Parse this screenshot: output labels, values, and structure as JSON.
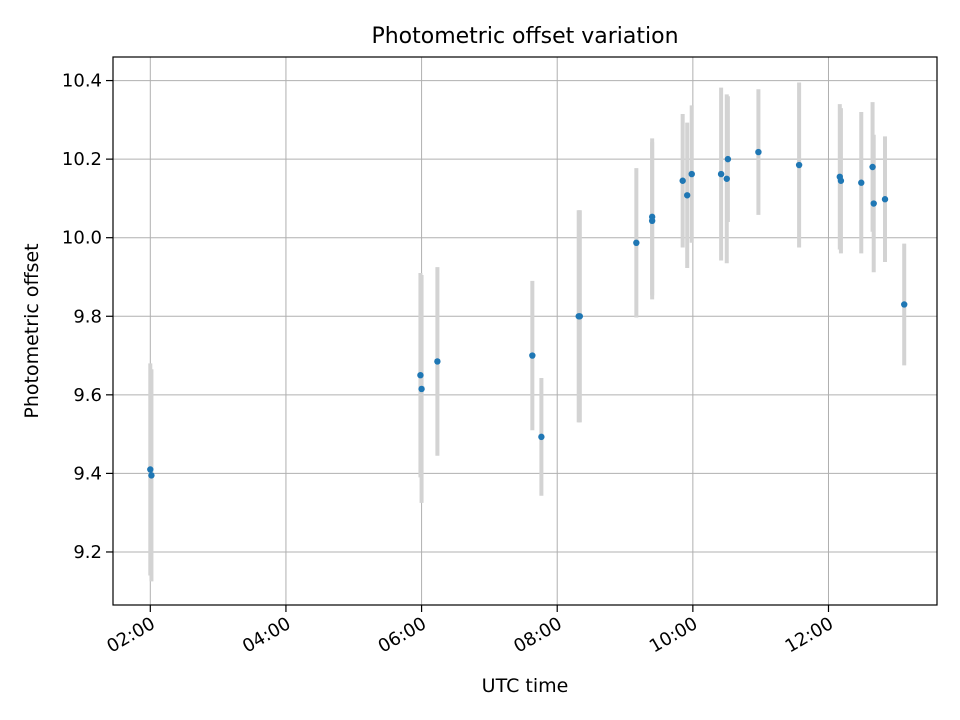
{
  "chart_data": {
    "type": "scatter",
    "title": "Photometric offset variation",
    "xlabel": "UTC time",
    "ylabel": "Photometric offset",
    "xlim": [
      "01:27",
      "13:36"
    ],
    "ylim": [
      9.065,
      10.46
    ],
    "x_ticks": [
      "02:00",
      "04:00",
      "06:00",
      "08:00",
      "10:00",
      "12:00"
    ],
    "y_ticks": [
      9.2,
      9.4,
      9.6,
      9.8,
      10.0,
      10.2,
      10.4
    ],
    "y_tick_labels": [
      "9.2",
      "9.4",
      "9.6",
      "9.8",
      "10.0",
      "10.2",
      "10.4"
    ],
    "grid": true,
    "point_color": "#1f77b4",
    "errorbar_color": "#d3d3d3",
    "points": [
      {
        "x": "02:00",
        "y": 9.41,
        "err": 0.27
      },
      {
        "x": "02:01",
        "y": 9.395,
        "err": 0.27
      },
      {
        "x": "05:59",
        "y": 9.65,
        "err": 0.26
      },
      {
        "x": "06:00",
        "y": 9.615,
        "err": 0.29
      },
      {
        "x": "06:14",
        "y": 9.685,
        "err": 0.24
      },
      {
        "x": "07:38",
        "y": 9.7,
        "err": 0.19
      },
      {
        "x": "07:46",
        "y": 9.493,
        "err": 0.15
      },
      {
        "x": "08:19",
        "y": 9.8,
        "err": 0.27
      },
      {
        "x": "08:20",
        "y": 9.8,
        "err": 0.27
      },
      {
        "x": "09:10",
        "y": 9.987,
        "err": 0.19
      },
      {
        "x": "09:24",
        "y": 10.053,
        "err": 0.2
      },
      {
        "x": "09:24",
        "y": 10.043,
        "err": 0.2
      },
      {
        "x": "09:51",
        "y": 10.145,
        "err": 0.17
      },
      {
        "x": "09:55",
        "y": 10.108,
        "err": 0.185
      },
      {
        "x": "09:59",
        "y": 10.162,
        "err": 0.175
      },
      {
        "x": "10:25",
        "y": 10.162,
        "err": 0.22
      },
      {
        "x": "10:30",
        "y": 10.15,
        "err": 0.215
      },
      {
        "x": "10:31",
        "y": 10.2,
        "err": 0.16
      },
      {
        "x": "10:58",
        "y": 10.218,
        "err": 0.16
      },
      {
        "x": "11:34",
        "y": 10.185,
        "err": 0.21
      },
      {
        "x": "12:10",
        "y": 10.155,
        "err": 0.185
      },
      {
        "x": "12:11",
        "y": 10.145,
        "err": 0.185
      },
      {
        "x": "12:29",
        "y": 10.14,
        "err": 0.18
      },
      {
        "x": "12:39",
        "y": 10.18,
        "err": 0.165
      },
      {
        "x": "12:40",
        "y": 10.087,
        "err": 0.175
      },
      {
        "x": "12:50",
        "y": 10.098,
        "err": 0.16
      },
      {
        "x": "13:07",
        "y": 9.83,
        "err": 0.155
      }
    ]
  }
}
